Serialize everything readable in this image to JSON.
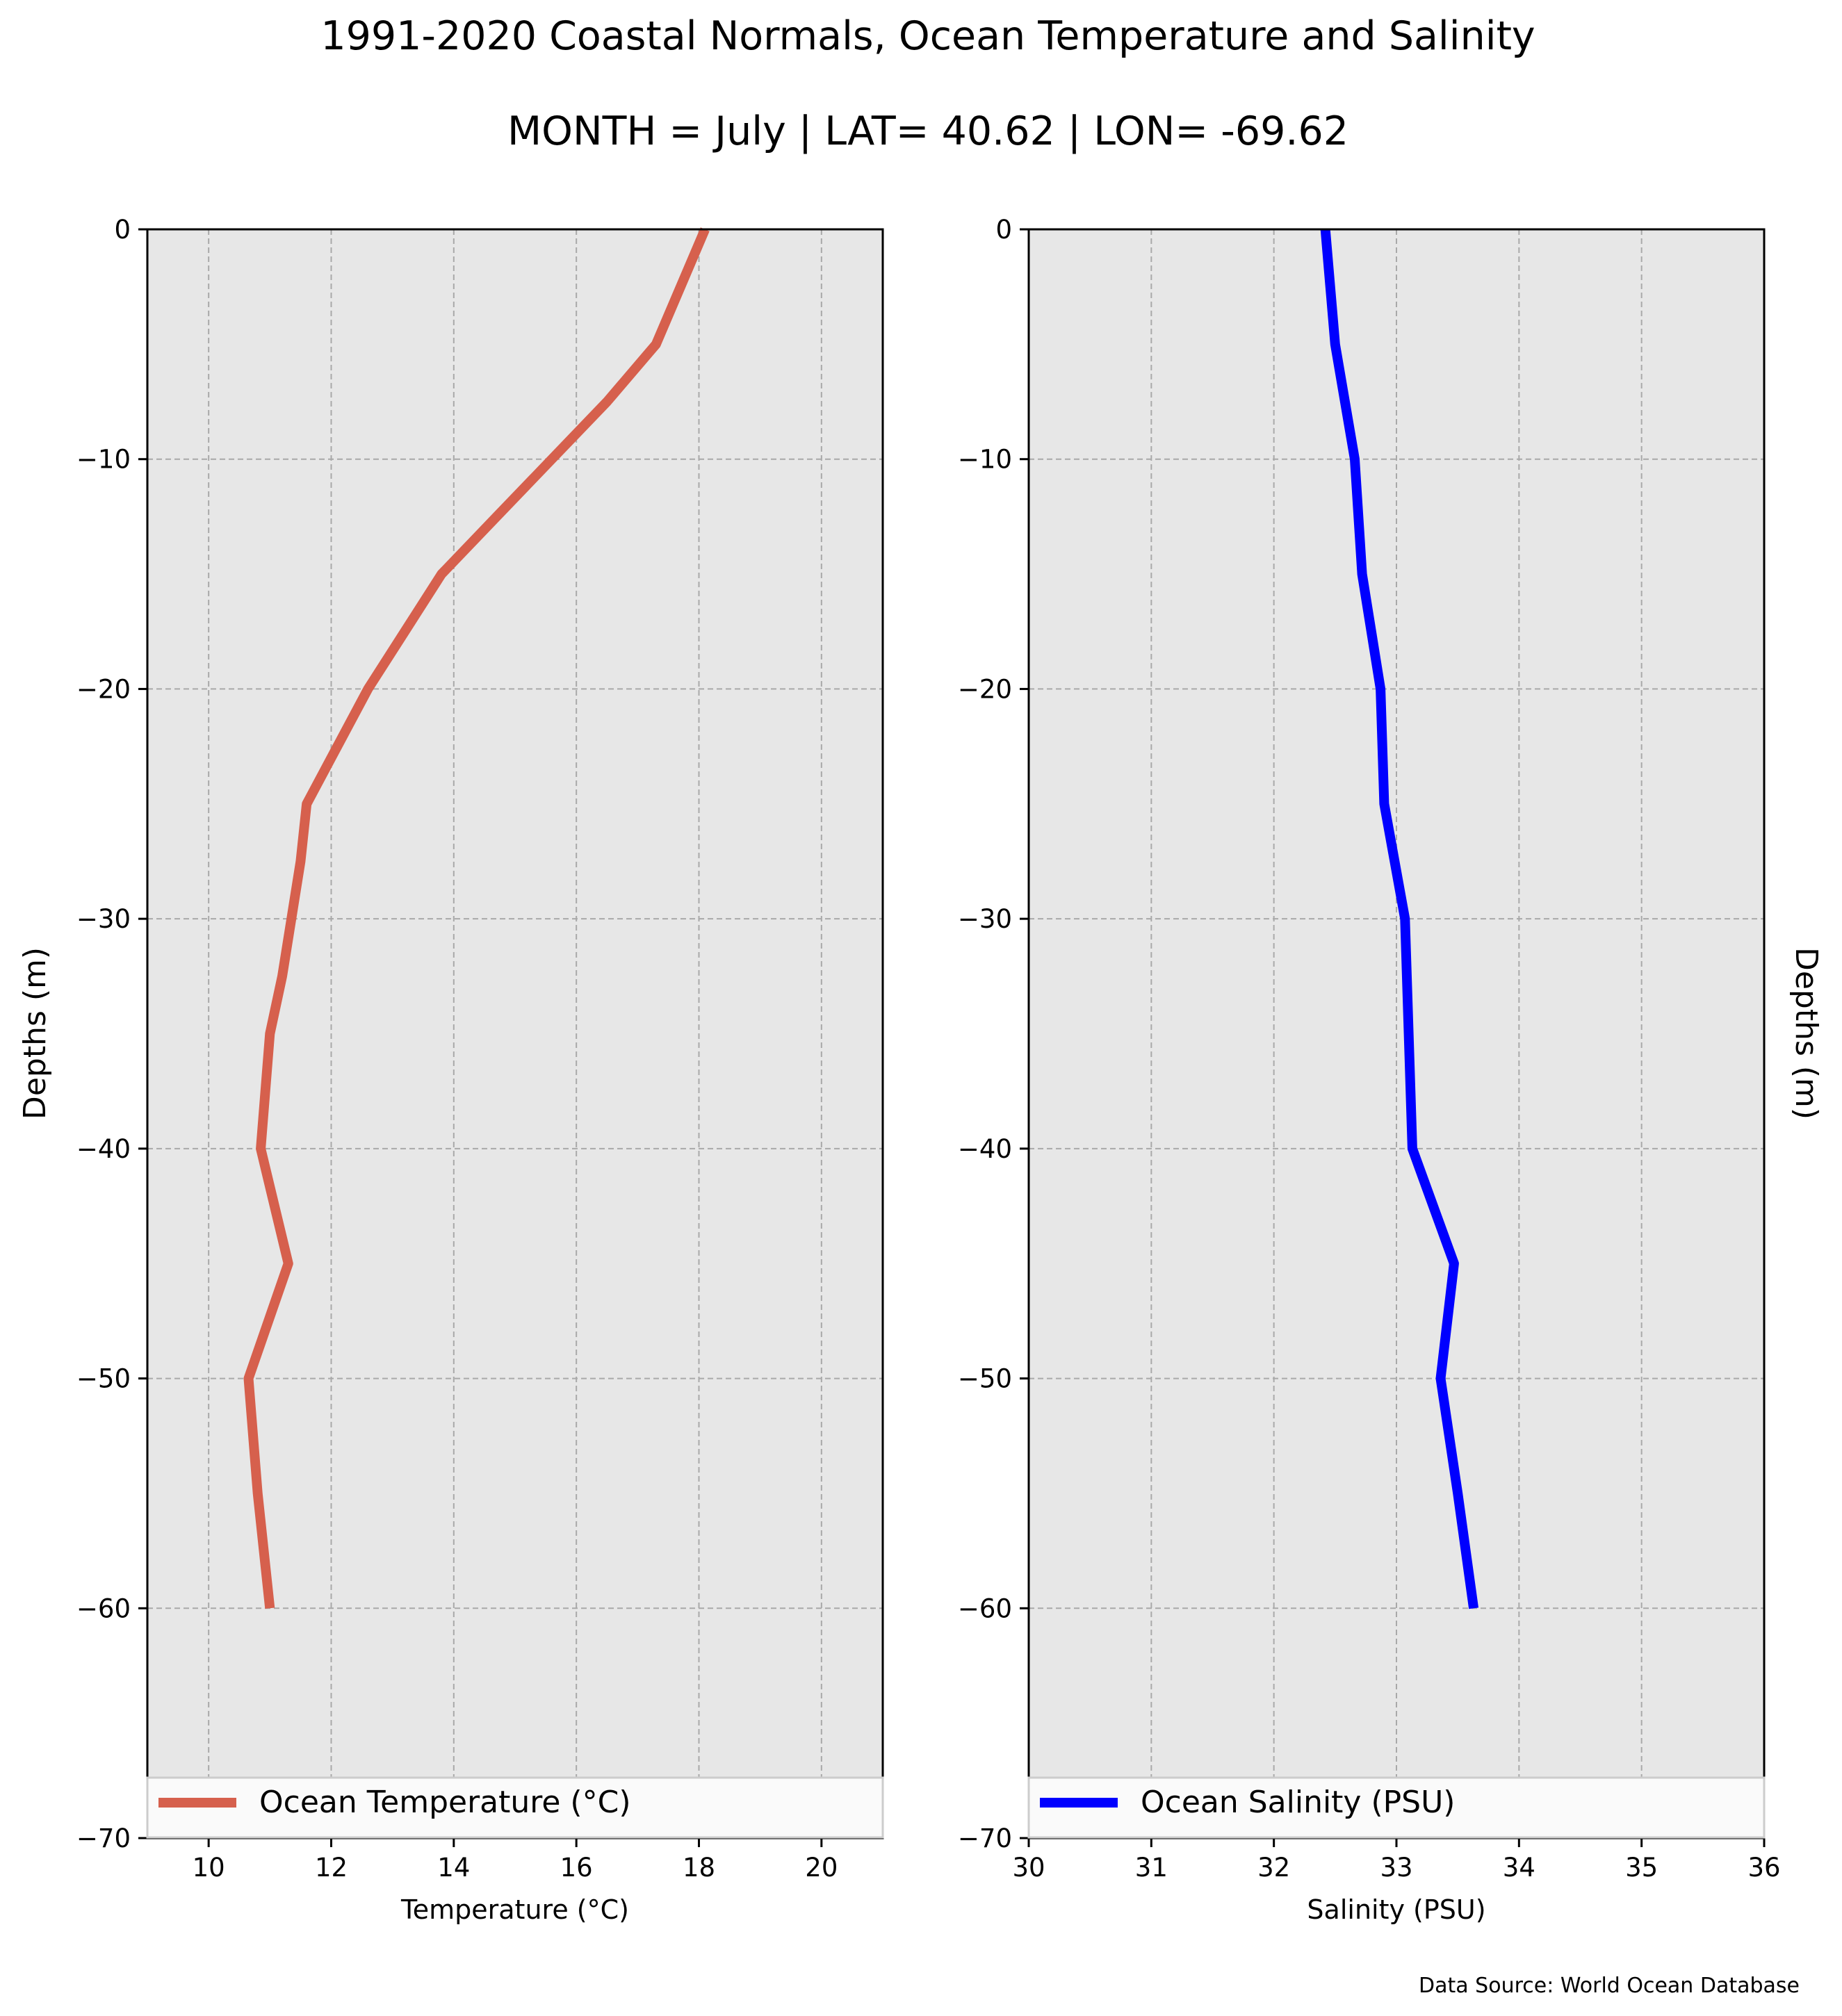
{
  "title": "1991-2020 Coastal Normals, Ocean Temperature and Salinity",
  "subtitle": "MONTH = July | LAT= 40.62 | LON= -69.62",
  "source_note": "Data Source: World Ocean Database",
  "chart_data": [
    {
      "type": "line",
      "xlabel": "Temperature (°C)",
      "ylabel": "Depths (m)",
      "xlim": [
        9,
        21
      ],
      "ylim": [
        -70,
        0
      ],
      "xticks": [
        10,
        12,
        14,
        16,
        18,
        20
      ],
      "yticks": [
        0,
        -10,
        -20,
        -30,
        -40,
        -50,
        -60,
        -70
      ],
      "grid": true,
      "legend_position": "bottom",
      "color": "#d6604d",
      "series": [
        {
          "name": "Ocean Temperature (°C)",
          "x": [
            18.1,
            17.3,
            16.5,
            15.6,
            14.7,
            13.8,
            13.2,
            12.6,
            12.1,
            11.6,
            11.5,
            11.35,
            11.2,
            11.0,
            10.85,
            11.3,
            10.65,
            10.8,
            11.0
          ],
          "y": [
            0,
            -5,
            -7.5,
            -10,
            -12.5,
            -15,
            -17.5,
            -20,
            -22.5,
            -25,
            -27.5,
            -30,
            -32.5,
            -35,
            -40,
            -45,
            -50,
            -55,
            -60
          ]
        }
      ]
    },
    {
      "type": "line",
      "xlabel": "Salinity (PSU)",
      "ylabel": "Depths (m)",
      "xlim": [
        30,
        36
      ],
      "ylim": [
        -70,
        0
      ],
      "xticks": [
        30,
        31,
        32,
        33,
        34,
        35,
        36
      ],
      "yticks": [
        0,
        -10,
        -20,
        -30,
        -40,
        -50,
        -60,
        -70
      ],
      "grid": true,
      "legend_position": "bottom",
      "color": "#0000ff",
      "series": [
        {
          "name": "Ocean Salinity (PSU)",
          "x": [
            32.42,
            32.5,
            32.66,
            32.72,
            32.87,
            32.9,
            33.07,
            33.13,
            33.47,
            33.36,
            33.5,
            33.63
          ],
          "y": [
            0,
            -5,
            -10,
            -15,
            -20,
            -25,
            -30,
            -40,
            -45,
            -50,
            -55,
            -60
          ]
        }
      ]
    }
  ]
}
